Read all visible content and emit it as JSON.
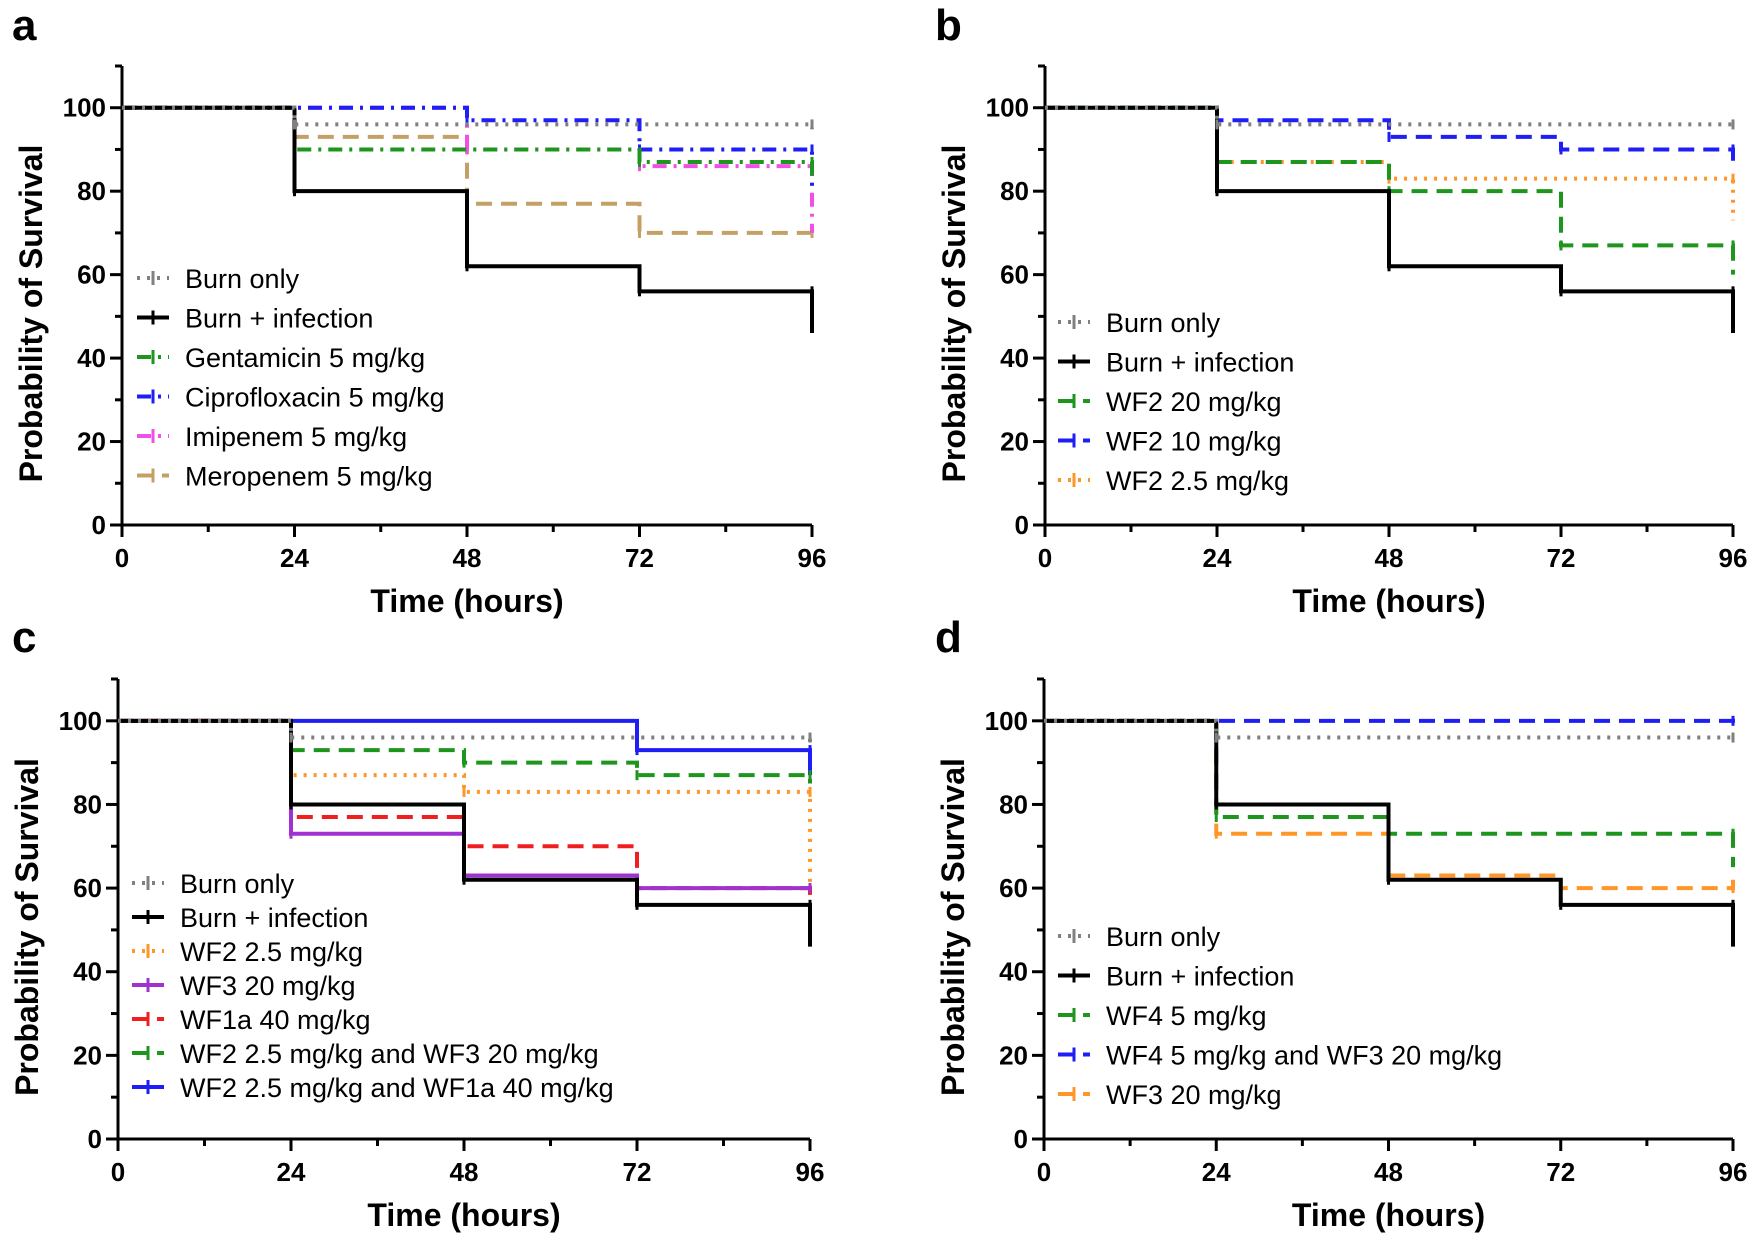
{
  "figure": {
    "type": "kaplan-meier",
    "colors": {
      "gray": "#808080",
      "black": "#000000",
      "green": "#1e961e",
      "blue": "#1e1ef5",
      "magenta": "#f050e6",
      "tan": "#c3a064",
      "orange": "#ff9628",
      "purple": "#a032d2",
      "red": "#f01e1e"
    }
  },
  "chart_data": [
    {
      "type": "line",
      "panel": "a",
      "xlabel": "Time (hours)",
      "ylabel": "Probability of Survival",
      "xlim": [
        0,
        96
      ],
      "ylim": [
        0,
        110
      ],
      "xticks": [
        "0",
        "24",
        "48",
        "72",
        "96"
      ],
      "yticks": [
        "0",
        "20",
        "40",
        "60",
        "80",
        "100"
      ],
      "grid": false,
      "legend_position": "bottom-left",
      "series": [
        {
          "name": "Burn only",
          "color": "#808080",
          "style": "dotted",
          "times": [
            0,
            24,
            96
          ],
          "values": [
            100,
            96,
            96
          ],
          "end_drop": 95
        },
        {
          "name": "Burn + infection",
          "color": "#000000",
          "style": "solid",
          "times": [
            0,
            24,
            48,
            72,
            96
          ],
          "values": [
            100,
            80,
            62,
            56,
            56
          ],
          "end_drop": 46
        },
        {
          "name": "Gentamicin 5 mg/kg",
          "color": "#1e961e",
          "style": "dashdot",
          "times": [
            0,
            24,
            72,
            96
          ],
          "values": [
            100,
            90,
            87,
            87
          ],
          "end_drop": 83
        },
        {
          "name": "Ciprofloxacin 5 mg/kg",
          "color": "#1e1ef5",
          "style": "dashdot",
          "times": [
            0,
            48,
            72,
            96
          ],
          "values": [
            100,
            97,
            90,
            90
          ],
          "end_drop": 80
        },
        {
          "name": "Imipenem 5 mg/kg",
          "color": "#f050e6",
          "style": "dashdot",
          "times": [
            0,
            48,
            72,
            96
          ],
          "values": [
            100,
            90,
            86,
            86
          ],
          "end_drop": 70
        },
        {
          "name": "Meropenem 5 mg/kg",
          "color": "#c3a064",
          "style": "dashed",
          "times": [
            0,
            24,
            48,
            72,
            96
          ],
          "values": [
            100,
            93,
            77,
            70,
            70
          ],
          "end_drop": 70
        }
      ]
    },
    {
      "type": "line",
      "panel": "b",
      "xlabel": "Time (hours)",
      "ylabel": "Probability of Survival",
      "xlim": [
        0,
        96
      ],
      "ylim": [
        0,
        110
      ],
      "xticks": [
        "0",
        "24",
        "48",
        "72",
        "96"
      ],
      "yticks": [
        "0",
        "20",
        "40",
        "60",
        "80",
        "100"
      ],
      "grid": false,
      "legend_position": "bottom-left",
      "series": [
        {
          "name": "Burn only",
          "color": "#808080",
          "style": "dotted",
          "times": [
            0,
            24,
            96
          ],
          "values": [
            100,
            96,
            96
          ],
          "end_drop": 95
        },
        {
          "name": "Burn + infection",
          "color": "#000000",
          "style": "solid",
          "times": [
            0,
            24,
            48,
            72,
            96
          ],
          "values": [
            100,
            80,
            62,
            56,
            56
          ],
          "end_drop": 46
        },
        {
          "name": "WF2 20 mg/kg",
          "color": "#1e961e",
          "style": "dashed",
          "times": [
            0,
            24,
            48,
            72,
            96
          ],
          "values": [
            100,
            87,
            80,
            67,
            67
          ],
          "end_drop": 60
        },
        {
          "name": "WF2 10 mg/kg",
          "color": "#1e1ef5",
          "style": "dashed",
          "times": [
            0,
            24,
            48,
            72,
            96
          ],
          "values": [
            100,
            97,
            93,
            90,
            90
          ],
          "end_drop": 87
        },
        {
          "name": "WF2 2.5 mg/kg",
          "color": "#ff9628",
          "style": "dotted",
          "times": [
            0,
            24,
            48,
            96
          ],
          "values": [
            100,
            87,
            83,
            83
          ],
          "end_drop": 73
        }
      ]
    },
    {
      "type": "line",
      "panel": "c",
      "xlabel": "Time (hours)",
      "ylabel": "Probability of Survival",
      "xlim": [
        0,
        96
      ],
      "ylim": [
        0,
        110
      ],
      "xticks": [
        "0",
        "24",
        "48",
        "72",
        "96"
      ],
      "yticks": [
        "0",
        "20",
        "40",
        "60",
        "80",
        "100"
      ],
      "grid": false,
      "legend_position": "bottom-left",
      "series": [
        {
          "name": "Burn only",
          "color": "#808080",
          "style": "dotted",
          "times": [
            0,
            24,
            96
          ],
          "values": [
            100,
            96,
            96
          ],
          "end_drop": 95
        },
        {
          "name": "Burn + infection",
          "color": "#000000",
          "style": "solid",
          "times": [
            0,
            24,
            48,
            72,
            96
          ],
          "values": [
            100,
            80,
            62,
            56,
            56
          ],
          "end_drop": 46
        },
        {
          "name": "WF2 2.5 mg/kg",
          "color": "#ff9628",
          "style": "dotted",
          "times": [
            0,
            24,
            48,
            96
          ],
          "values": [
            100,
            87,
            83,
            83
          ],
          "end_drop": 60
        },
        {
          "name": "WF3 20 mg/kg",
          "color": "#a032d2",
          "style": "solid",
          "times": [
            0,
            24,
            48,
            72,
            96
          ],
          "values": [
            100,
            73,
            63,
            60,
            60
          ],
          "end_drop": 60
        },
        {
          "name": "WF1a 40 mg/kg",
          "color": "#f01e1e",
          "style": "dashed",
          "times": [
            0,
            24,
            48,
            72,
            96
          ],
          "values": [
            100,
            77,
            70,
            60,
            60
          ],
          "end_drop": 53
        },
        {
          "name": "WF2 2.5 mg/kg and WF3 20 mg/kg",
          "color": "#1e961e",
          "style": "dashed",
          "times": [
            0,
            24,
            48,
            72,
            96
          ],
          "values": [
            100,
            93,
            90,
            87,
            87
          ],
          "end_drop": 85
        },
        {
          "name": "WF2 2.5 mg/kg and WF1a 40 mg/kg",
          "color": "#1e1ef5",
          "style": "solid",
          "times": [
            0,
            72,
            96
          ],
          "values": [
            100,
            93,
            93
          ],
          "end_drop": 87
        }
      ]
    },
    {
      "type": "line",
      "panel": "d",
      "xlabel": "Time (hours)",
      "ylabel": "Probability of Survival",
      "xlim": [
        0,
        96
      ],
      "ylim": [
        0,
        110
      ],
      "xticks": [
        "0",
        "24",
        "48",
        "72",
        "96"
      ],
      "yticks": [
        "0",
        "20",
        "40",
        "60",
        "80",
        "100"
      ],
      "grid": false,
      "legend_position": "bottom-left",
      "series": [
        {
          "name": "Burn only",
          "color": "#808080",
          "style": "dotted",
          "times": [
            0,
            24,
            96
          ],
          "values": [
            100,
            96,
            96
          ],
          "end_drop": 95
        },
        {
          "name": "Burn + infection",
          "color": "#000000",
          "style": "solid",
          "times": [
            0,
            24,
            48,
            72,
            96
          ],
          "values": [
            100,
            80,
            62,
            56,
            56
          ],
          "end_drop": 46
        },
        {
          "name": "WF4 5 mg/kg",
          "color": "#1e961e",
          "style": "dashed",
          "times": [
            0,
            24,
            48,
            96
          ],
          "values": [
            100,
            77,
            73,
            73
          ],
          "end_drop": 65
        },
        {
          "name": "WF4 5 mg/kg and WF3 20 mg/kg",
          "color": "#1e1ef5",
          "style": "dashed",
          "times": [
            0,
            96
          ],
          "values": [
            100,
            100
          ],
          "end_drop": 102
        },
        {
          "name": "WF3 20 mg/kg",
          "color": "#ff9628",
          "style": "dashed",
          "times": [
            0,
            24,
            48,
            72,
            96
          ],
          "values": [
            100,
            73,
            63,
            60,
            60
          ],
          "end_drop": 62
        }
      ]
    }
  ]
}
